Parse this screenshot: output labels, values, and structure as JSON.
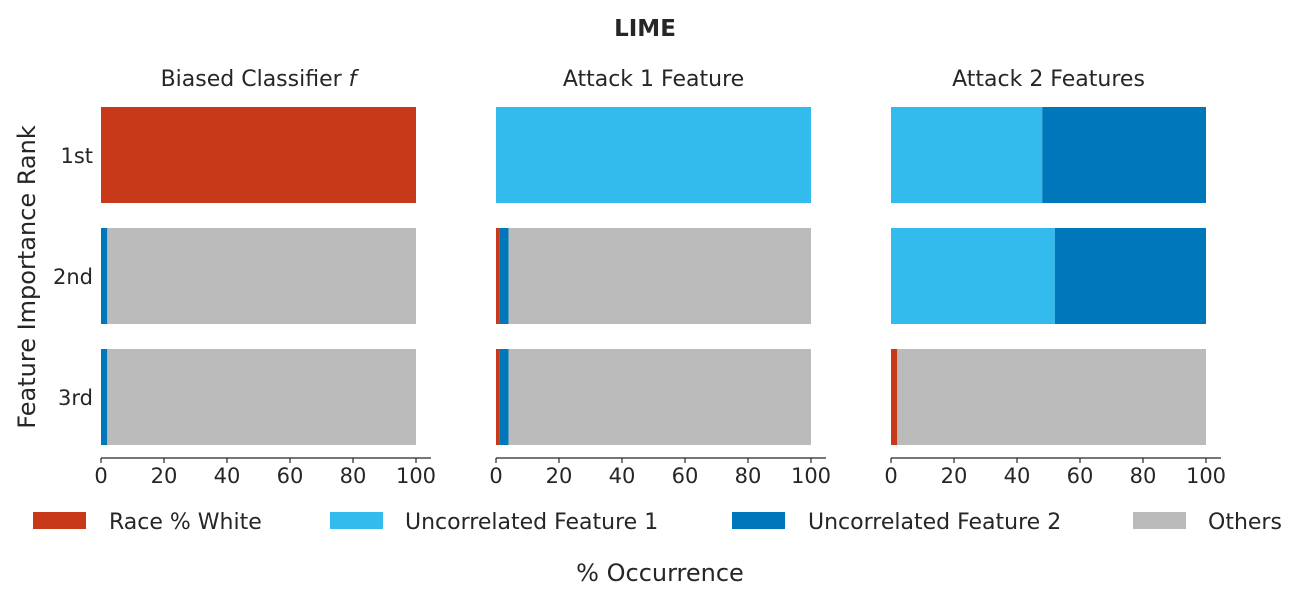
{
  "chart_data": {
    "type": "bar",
    "orientation": "horizontal",
    "stacked": true,
    "title": "LIME",
    "xlabel": "% Occurrence",
    "ylabel": "Feature Importance Rank",
    "categories": [
      "1st",
      "2nd",
      "3rd"
    ],
    "xlim": [
      0,
      100
    ],
    "xticks": [
      0,
      20,
      40,
      60,
      80,
      100
    ],
    "grid": false,
    "legend_position": "bottom",
    "legend": [
      {
        "name": "Race % White",
        "color": "#c8391a"
      },
      {
        "name": "Uncorrelated Feature 1",
        "color": "#33bbee"
      },
      {
        "name": "Uncorrelated Feature 2",
        "color": "#0077bb"
      },
      {
        "name": "Others",
        "color": "#bbbbbb"
      }
    ],
    "panels": [
      {
        "subtitle": "Biased Classifier",
        "subtitle_suffix": "f",
        "series": [
          {
            "name": "Race % White",
            "values": [
              100,
              0,
              0
            ]
          },
          {
            "name": "Uncorrelated Feature 1",
            "values": [
              0,
              0,
              0
            ]
          },
          {
            "name": "Uncorrelated Feature 2",
            "values": [
              0,
              2,
              2
            ]
          },
          {
            "name": "Others",
            "values": [
              0,
              98,
              98
            ]
          }
        ]
      },
      {
        "subtitle": "Attack 1 Feature",
        "subtitle_suffix": "",
        "series": [
          {
            "name": "Race % White",
            "values": [
              0,
              1,
              1
            ]
          },
          {
            "name": "Uncorrelated Feature 1",
            "values": [
              100,
              0,
              0
            ]
          },
          {
            "name": "Uncorrelated Feature 2",
            "values": [
              0,
              3,
              3
            ]
          },
          {
            "name": "Others",
            "values": [
              0,
              96,
              96
            ]
          }
        ]
      },
      {
        "subtitle": "Attack 2 Features",
        "subtitle_suffix": "",
        "series": [
          {
            "name": "Race % White",
            "values": [
              0,
              0,
              2
            ]
          },
          {
            "name": "Uncorrelated Feature 1",
            "values": [
              48,
              52,
              0
            ]
          },
          {
            "name": "Uncorrelated Feature 2",
            "values": [
              52,
              48,
              0
            ]
          },
          {
            "name": "Others",
            "values": [
              0,
              0,
              98
            ]
          }
        ]
      }
    ]
  }
}
